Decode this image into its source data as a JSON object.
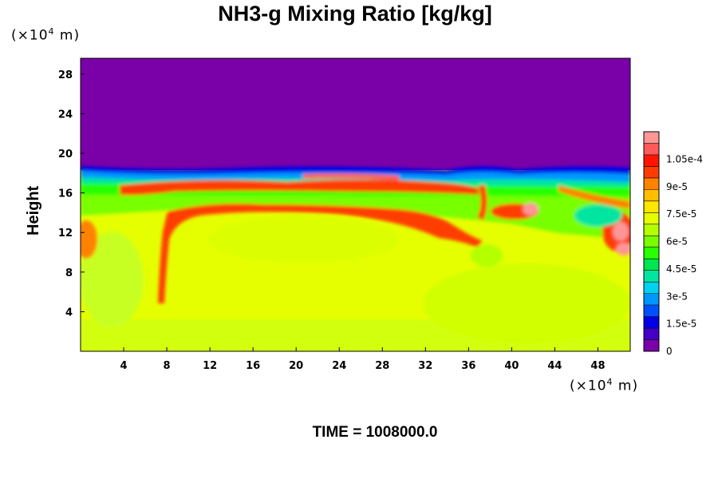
{
  "chart_data": {
    "type": "heatmap",
    "title": "NH3-g Mixing Ratio [kg/kg]",
    "ylabel": "Height",
    "xlabel": "",
    "y_unit_label": "(×10",
    "y_unit_exp": "4",
    "y_unit_suffix": " m)",
    "x_unit_label": "(×10",
    "x_unit_exp": "4",
    "x_unit_suffix": " m)",
    "x_ticks": [
      "4",
      "8",
      "12",
      "16",
      "20",
      "24",
      "28",
      "32",
      "36",
      "40",
      "44",
      "48"
    ],
    "x_tick_values": [
      4,
      8,
      12,
      16,
      20,
      24,
      28,
      32,
      36,
      40,
      44,
      48
    ],
    "y_ticks": [
      "4",
      "8",
      "12",
      "16",
      "20",
      "24",
      "28"
    ],
    "y_tick_values": [
      4,
      8,
      12,
      16,
      20,
      24,
      28
    ],
    "xlim": [
      0,
      51
    ],
    "ylim": [
      0,
      29.6
    ],
    "colorbar": {
      "ticks": [
        "0",
        "1.5e-5",
        "3e-5",
        "4.5e-5",
        "6e-5",
        "7.5e-5",
        "9e-5",
        "1.05e-4"
      ],
      "tick_values": [
        0,
        1.5e-05,
        3e-05,
        4.5e-05,
        6e-05,
        7.5e-05,
        9e-05,
        0.000105
      ],
      "range": [
        0,
        0.00012
      ],
      "colors": [
        "#7a00a8",
        "#4400c8",
        "#0000e6",
        "#0050ff",
        "#0096ff",
        "#00d2f0",
        "#00e6a0",
        "#00e650",
        "#28ff00",
        "#78ff00",
        "#b4ff00",
        "#e6ff00",
        "#ffe600",
        "#ffbe00",
        "#ff8200",
        "#ff3c00",
        "#ff1400",
        "#ff5a5a",
        "#ff9696"
      ]
    },
    "regions": {
      "upper_layer": "0",
      "bulk": "about 7.5e-5",
      "band_near_16": "about 9e-5 to 1.05e-4"
    },
    "footer": "TIME = 1008000.0"
  }
}
